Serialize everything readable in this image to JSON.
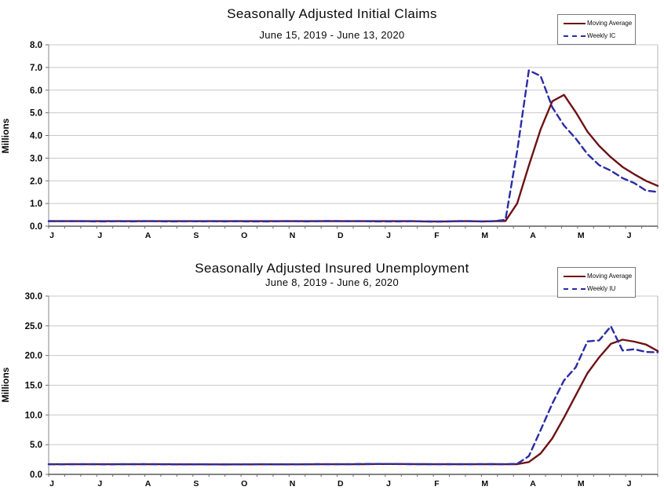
{
  "chart_data": [
    {
      "type": "line",
      "title": "Seasonally Adjusted Initial Claims",
      "subtitle": "June 15, 2019 - June 13, 2020",
      "ylabel": "Millions",
      "ylim": [
        0,
        8
      ],
      "ytick_step": 1,
      "ytick_labels": [
        "0.0",
        "1.0",
        "2.0",
        "3.0",
        "4.0",
        "5.0",
        "6.0",
        "7.0",
        "8.0"
      ],
      "x_tick_labels": [
        "J",
        "J",
        "A",
        "S",
        "O",
        "N",
        "D",
        "J",
        "F",
        "M",
        "A",
        "M",
        "J"
      ],
      "x_unit": "week",
      "n_points": 53,
      "grid": "horizontal",
      "grid_color": "#c8c8c8",
      "axis_color": "#3a3a3a",
      "legend_position": "top-right",
      "series": [
        {
          "name": "Moving Average",
          "color": "#6e1216",
          "dash": false,
          "values": [
            0.22,
            0.22,
            0.22,
            0.22,
            0.22,
            0.22,
            0.22,
            0.22,
            0.22,
            0.22,
            0.22,
            0.22,
            0.22,
            0.22,
            0.22,
            0.22,
            0.22,
            0.22,
            0.22,
            0.22,
            0.22,
            0.22,
            0.22,
            0.22,
            0.22,
            0.22,
            0.22,
            0.22,
            0.22,
            0.22,
            0.22,
            0.22,
            0.21,
            0.21,
            0.21,
            0.22,
            0.22,
            0.21,
            0.22,
            0.23,
            1.0,
            2.67,
            4.27,
            5.51,
            5.79,
            5.03,
            4.17,
            3.54,
            3.04,
            2.61,
            2.29,
            2.0,
            1.78
          ]
        },
        {
          "name": "Weekly IC",
          "color": "#2b2ba6",
          "dash": true,
          "values": [
            0.22,
            0.22,
            0.22,
            0.22,
            0.21,
            0.21,
            0.22,
            0.21,
            0.22,
            0.22,
            0.21,
            0.21,
            0.22,
            0.21,
            0.22,
            0.21,
            0.22,
            0.21,
            0.21,
            0.21,
            0.22,
            0.22,
            0.21,
            0.22,
            0.23,
            0.22,
            0.22,
            0.22,
            0.21,
            0.21,
            0.21,
            0.22,
            0.21,
            0.2,
            0.21,
            0.22,
            0.22,
            0.21,
            0.22,
            0.28,
            3.31,
            6.87,
            6.62,
            5.24,
            4.44,
            3.87,
            3.18,
            2.69,
            2.45,
            2.12,
            1.9,
            1.57,
            1.51
          ]
        }
      ]
    },
    {
      "type": "line",
      "title": "Seasonally Adjusted Insured Unemployment",
      "subtitle": "June 8, 2019 - June 6, 2020",
      "ylabel": "Millions",
      "ylim": [
        0,
        30
      ],
      "ytick_step": 5,
      "ytick_labels": [
        "0.0",
        "5.0",
        "10.0",
        "15.0",
        "20.0",
        "25.0",
        "30.0"
      ],
      "x_tick_labels": [
        "J",
        "J",
        "A",
        "S",
        "O",
        "N",
        "D",
        "J",
        "F",
        "M",
        "A",
        "M",
        "J"
      ],
      "x_unit": "week",
      "n_points": 53,
      "grid": "horizontal",
      "grid_color": "#c8c8c8",
      "axis_color": "#3a3a3a",
      "legend_position": "top-right",
      "series": [
        {
          "name": "Moving Average",
          "color": "#6e1216",
          "dash": false,
          "values": [
            1.7,
            1.7,
            1.7,
            1.7,
            1.7,
            1.7,
            1.7,
            1.7,
            1.7,
            1.7,
            1.7,
            1.69,
            1.69,
            1.69,
            1.68,
            1.68,
            1.68,
            1.68,
            1.69,
            1.69,
            1.69,
            1.69,
            1.69,
            1.7,
            1.71,
            1.71,
            1.71,
            1.72,
            1.74,
            1.74,
            1.74,
            1.73,
            1.72,
            1.71,
            1.71,
            1.71,
            1.71,
            1.71,
            1.72,
            1.71,
            1.72,
            2.08,
            3.52,
            6.07,
            9.56,
            13.29,
            17.03,
            19.69,
            21.96,
            22.67,
            22.34,
            21.85,
            20.76
          ]
        },
        {
          "name": "Weekly IU",
          "color": "#2b2ba6",
          "dash": true,
          "values": [
            1.7,
            1.69,
            1.7,
            1.71,
            1.7,
            1.69,
            1.7,
            1.7,
            1.72,
            1.7,
            1.69,
            1.68,
            1.68,
            1.69,
            1.68,
            1.67,
            1.68,
            1.69,
            1.7,
            1.69,
            1.68,
            1.69,
            1.7,
            1.72,
            1.71,
            1.7,
            1.72,
            1.74,
            1.76,
            1.75,
            1.73,
            1.72,
            1.7,
            1.71,
            1.72,
            1.7,
            1.7,
            1.73,
            1.72,
            1.7,
            1.77,
            3.06,
            7.45,
            11.91,
            15.82,
            18.01,
            22.38,
            22.55,
            24.91,
            20.84,
            21.05,
            20.61,
            20.54
          ]
        }
      ]
    }
  ]
}
